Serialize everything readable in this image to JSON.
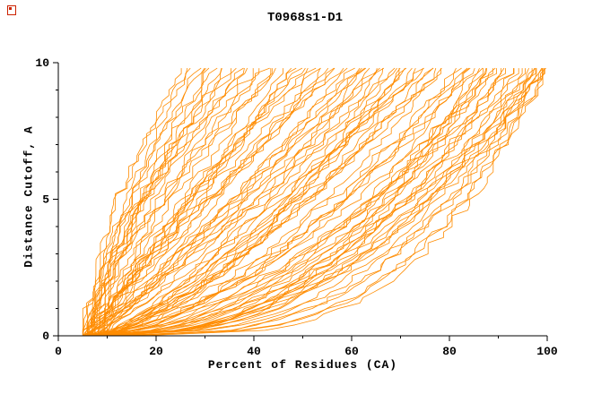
{
  "chart_data": {
    "type": "line",
    "title": "T0968s1-D1",
    "xlabel": "Percent of Residues (CA)",
    "ylabel": "Distance Cutoff, A",
    "xlim": [
      0,
      100
    ],
    "ylim": [
      0,
      10
    ],
    "x_ticks": [
      0,
      20,
      40,
      60,
      80,
      100
    ],
    "x_minor_ticks": [
      10,
      30,
      50,
      70,
      90
    ],
    "y_ticks": [
      0,
      5,
      10
    ],
    "y_minor_ticks": [
      1,
      2,
      3,
      4,
      6,
      7,
      8,
      9
    ],
    "line_color": "#FF8C00",
    "axis_color": "#000000",
    "curve_model": "x(y) = x0 + (x1 - x0) * (y/10)^g, jagged monotonic step noise; each curve is one model's cumulative percent of CA residues under distance cutoff",
    "curves": [
      [
        5,
        26,
        1.6
      ],
      [
        6,
        28,
        1.5
      ],
      [
        5,
        30,
        1.4
      ],
      [
        7,
        32,
        1.7
      ],
      [
        6,
        34,
        1.3
      ],
      [
        8,
        36,
        1.5
      ],
      [
        5,
        38,
        1.2
      ],
      [
        7,
        40,
        1.6
      ],
      [
        6,
        27,
        1.8
      ],
      [
        8,
        33,
        1.4
      ],
      [
        5,
        35,
        1.3
      ],
      [
        7,
        29,
        1.5
      ],
      [
        6,
        39,
        1.45
      ],
      [
        8,
        31,
        1.35
      ],
      [
        5,
        37,
        1.55
      ],
      [
        6,
        42,
        1.2
      ],
      [
        7,
        44,
        1.0
      ],
      [
        5,
        46,
        1.3
      ],
      [
        8,
        48,
        0.95
      ],
      [
        6,
        50,
        1.1
      ],
      [
        9,
        52,
        1.25
      ],
      [
        5,
        54,
        0.9
      ],
      [
        7,
        56,
        1.15
      ],
      [
        6,
        58,
        1.05
      ],
      [
        8,
        60,
        0.92
      ],
      [
        5,
        43,
        1.3
      ],
      [
        7,
        47,
        1.0
      ],
      [
        6,
        51,
        1.2
      ],
      [
        9,
        55,
        0.95
      ],
      [
        5,
        59,
        1.1
      ],
      [
        8,
        45,
        1.28
      ],
      [
        6,
        49,
        0.98
      ],
      [
        7,
        53,
        1.18
      ],
      [
        5,
        57,
        1.02
      ],
      [
        9,
        41,
        1.35
      ],
      [
        6,
        62,
        0.85
      ],
      [
        7,
        64,
        0.7
      ],
      [
        5,
        66,
        0.95
      ],
      [
        8,
        68,
        0.65
      ],
      [
        6,
        70,
        0.9
      ],
      [
        9,
        72,
        0.75
      ],
      [
        5,
        74,
        0.6
      ],
      [
        7,
        76,
        0.88
      ],
      [
        6,
        78,
        0.68
      ],
      [
        8,
        80,
        0.8
      ],
      [
        5,
        63,
        0.92
      ],
      [
        7,
        67,
        0.72
      ],
      [
        6,
        71,
        0.62
      ],
      [
        9,
        75,
        0.85
      ],
      [
        5,
        79,
        0.66
      ],
      [
        8,
        61,
        0.95
      ],
      [
        6,
        65,
        0.78
      ],
      [
        7,
        69,
        0.6
      ],
      [
        5,
        73,
        0.9
      ],
      [
        10,
        77,
        0.7
      ],
      [
        6,
        63,
        0.82
      ],
      [
        8,
        71,
        0.64
      ],
      [
        5,
        67,
        0.88
      ],
      [
        7,
        75,
        0.74
      ],
      [
        9,
        79,
        0.61
      ],
      [
        6,
        82,
        0.55
      ],
      [
        7,
        84,
        0.45
      ],
      [
        5,
        86,
        0.6
      ],
      [
        8,
        88,
        0.4
      ],
      [
        6,
        90,
        0.52
      ],
      [
        9,
        92,
        0.42
      ],
      [
        5,
        94,
        0.58
      ],
      [
        7,
        96,
        0.38
      ],
      [
        6,
        98,
        0.5
      ],
      [
        8,
        100,
        0.36
      ],
      [
        5,
        83,
        0.62
      ],
      [
        7,
        87,
        0.44
      ],
      [
        6,
        91,
        0.55
      ],
      [
        9,
        95,
        0.4
      ],
      [
        5,
        99,
        0.48
      ],
      [
        8,
        85,
        0.6
      ],
      [
        6,
        89,
        0.42
      ],
      [
        7,
        93,
        0.52
      ],
      [
        5,
        97,
        0.37
      ],
      [
        10,
        100,
        0.45
      ],
      [
        6,
        84,
        0.58
      ],
      [
        8,
        92,
        0.4
      ],
      [
        5,
        88,
        0.5
      ],
      [
        7,
        100,
        0.42
      ],
      [
        9,
        96,
        0.55
      ],
      [
        6,
        86,
        0.39
      ],
      [
        11,
        94,
        0.47
      ],
      [
        5,
        90,
        0.6
      ],
      [
        7,
        98,
        0.36
      ],
      [
        12,
        100,
        0.5
      ],
      [
        10,
        100,
        0.3
      ],
      [
        14,
        100,
        0.32
      ],
      [
        12,
        98,
        0.34
      ],
      [
        16,
        100,
        0.3
      ],
      [
        13,
        99,
        0.35
      ]
    ]
  }
}
